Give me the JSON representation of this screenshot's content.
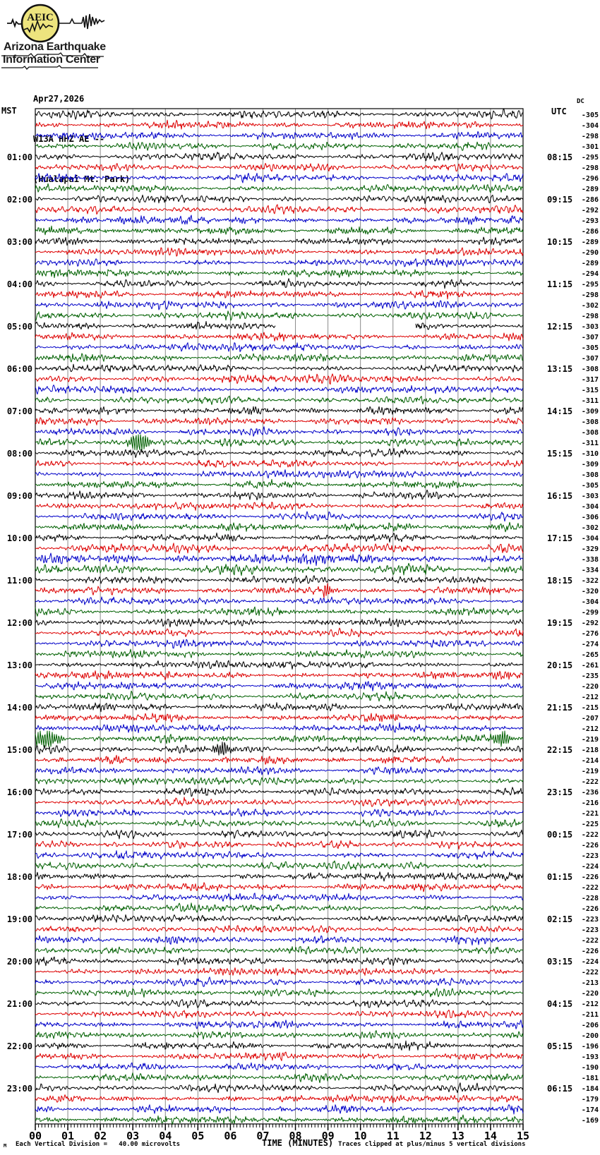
{
  "header": {
    "logo_text": "AEIC",
    "org_line1": "Arizona Earthquake",
    "org_line2": "Information Center",
    "date": "Apr27,2026",
    "station": "W13A HHZ AE --",
    "location": "(Hualapai Mt. Park)"
  },
  "axes": {
    "left_title": "MST",
    "right_title": "UTC",
    "offset_title": "DC"
  },
  "footer": {
    "mini_mark": "M",
    "scale_note": "Each Vertical Division =   40.00 microvolts",
    "axis_title": "TIME (MINUTES)",
    "clip_note": "Traces clipped at plus/minus 5 vertical divisions"
  },
  "chart_data": {
    "type": "seismogram-helicorder",
    "title": "W13A HHZ AE -- (Hualapai Mt. Park) Apr27,2026",
    "xlabel": "TIME (MINUTES)",
    "x_range_minutes": [
      0,
      15
    ],
    "x_tick_labels": [
      "00",
      "01",
      "02",
      "03",
      "04",
      "05",
      "06",
      "07",
      "08",
      "09",
      "10",
      "11",
      "12",
      "13",
      "14",
      "15"
    ],
    "minutes_per_line": 15,
    "lines_per_hour": 4,
    "microvolts_per_division": 40,
    "clip_divisions": 5,
    "grid": true,
    "grid_color": "#8a8a8a",
    "color_map": {
      "k": "#000000",
      "r": "#dd0000",
      "b": "#0000c8",
      "g": "#006000"
    },
    "rows": [
      {
        "c": "k",
        "dc": -305
      },
      {
        "c": "r",
        "dc": -304
      },
      {
        "c": "b",
        "dc": -298
      },
      {
        "c": "g",
        "dc": -301
      },
      {
        "c": "k",
        "dc": -295,
        "mst": "01:00",
        "utc": "08:15"
      },
      {
        "c": "r",
        "dc": -298
      },
      {
        "c": "b",
        "dc": -296
      },
      {
        "c": "g",
        "dc": -289
      },
      {
        "c": "k",
        "dc": -286,
        "mst": "02:00",
        "utc": "09:15"
      },
      {
        "c": "r",
        "dc": -292
      },
      {
        "c": "b",
        "dc": -293
      },
      {
        "c": "g",
        "dc": -286
      },
      {
        "c": "k",
        "dc": -289,
        "mst": "03:00",
        "utc": "10:15"
      },
      {
        "c": "r",
        "dc": -290
      },
      {
        "c": "b",
        "dc": -289
      },
      {
        "c": "g",
        "dc": -294
      },
      {
        "c": "k",
        "dc": -295,
        "mst": "04:00",
        "utc": "11:15"
      },
      {
        "c": "r",
        "dc": -298
      },
      {
        "c": "b",
        "dc": -302
      },
      {
        "c": "g",
        "dc": -298
      },
      {
        "c": "k",
        "dc": -303,
        "mst": "05:00",
        "utc": "12:15",
        "gap": [
          7.4,
          11.7
        ]
      },
      {
        "c": "r",
        "dc": -307
      },
      {
        "c": "b",
        "dc": -305
      },
      {
        "c": "g",
        "dc": -307
      },
      {
        "c": "k",
        "dc": -308,
        "mst": "06:00",
        "utc": "13:15"
      },
      {
        "c": "r",
        "dc": -317,
        "amp": 1.15
      },
      {
        "c": "b",
        "dc": -315
      },
      {
        "c": "g",
        "dc": -311
      },
      {
        "c": "k",
        "dc": -309,
        "mst": "07:00",
        "utc": "14:15"
      },
      {
        "c": "r",
        "dc": -308
      },
      {
        "c": "b",
        "dc": -308
      },
      {
        "c": "g",
        "dc": -311,
        "bursts": [
          {
            "m": 3.2,
            "a": 14,
            "w": 10
          }
        ]
      },
      {
        "c": "k",
        "dc": -310,
        "mst": "08:00",
        "utc": "15:15"
      },
      {
        "c": "r",
        "dc": -309
      },
      {
        "c": "b",
        "dc": -308
      },
      {
        "c": "g",
        "dc": -305
      },
      {
        "c": "k",
        "dc": -303,
        "mst": "09:00",
        "utc": "16:15"
      },
      {
        "c": "r",
        "dc": -304
      },
      {
        "c": "b",
        "dc": -306
      },
      {
        "c": "g",
        "dc": -302
      },
      {
        "c": "k",
        "dc": -304,
        "mst": "10:00",
        "utc": "17:15"
      },
      {
        "c": "r",
        "dc": -329,
        "amp": 1.3
      },
      {
        "c": "b",
        "dc": -338,
        "amp": 1.35
      },
      {
        "c": "g",
        "dc": -334,
        "amp": 1.3
      },
      {
        "c": "k",
        "dc": -322,
        "mst": "11:00",
        "utc": "18:15"
      },
      {
        "c": "r",
        "dc": -320,
        "bursts": [
          {
            "m": 8.95,
            "a": 9,
            "w": 5
          }
        ]
      },
      {
        "c": "b",
        "dc": -304
      },
      {
        "c": "g",
        "dc": -299
      },
      {
        "c": "k",
        "dc": -292,
        "mst": "12:00",
        "utc": "19:15"
      },
      {
        "c": "r",
        "dc": -276
      },
      {
        "c": "b",
        "dc": -274
      },
      {
        "c": "g",
        "dc": -265
      },
      {
        "c": "k",
        "dc": -261,
        "mst": "13:00",
        "utc": "20:15"
      },
      {
        "c": "r",
        "dc": -235
      },
      {
        "c": "b",
        "dc": -220
      },
      {
        "c": "g",
        "dc": -212
      },
      {
        "c": "k",
        "dc": -215,
        "mst": "14:00",
        "utc": "21:15"
      },
      {
        "c": "r",
        "dc": -207
      },
      {
        "c": "b",
        "dc": -212
      },
      {
        "c": "g",
        "dc": -219,
        "bursts": [
          {
            "m": 0.3,
            "a": 13,
            "w": 14
          },
          {
            "m": 14.35,
            "a": 11,
            "w": 8
          }
        ]
      },
      {
        "c": "k",
        "dc": -218,
        "mst": "15:00",
        "utc": "22:15",
        "bursts": [
          {
            "m": 5.75,
            "a": 10,
            "w": 8
          }
        ]
      },
      {
        "c": "r",
        "dc": -214
      },
      {
        "c": "b",
        "dc": -219
      },
      {
        "c": "g",
        "dc": -222
      },
      {
        "c": "k",
        "dc": -236,
        "mst": "16:00",
        "utc": "23:15"
      },
      {
        "c": "r",
        "dc": -216
      },
      {
        "c": "b",
        "dc": -221
      },
      {
        "c": "g",
        "dc": -225
      },
      {
        "c": "k",
        "dc": -222,
        "mst": "17:00",
        "utc": "00:15"
      },
      {
        "c": "r",
        "dc": -226
      },
      {
        "c": "b",
        "dc": -223
      },
      {
        "c": "g",
        "dc": -224
      },
      {
        "c": "k",
        "dc": -226,
        "mst": "18:00",
        "utc": "01:15"
      },
      {
        "c": "r",
        "dc": -222
      },
      {
        "c": "b",
        "dc": -228
      },
      {
        "c": "g",
        "dc": -226
      },
      {
        "c": "k",
        "dc": -223,
        "mst": "19:00",
        "utc": "02:15"
      },
      {
        "c": "r",
        "dc": -223
      },
      {
        "c": "b",
        "dc": -222
      },
      {
        "c": "g",
        "dc": -226
      },
      {
        "c": "k",
        "dc": -224,
        "mst": "20:00",
        "utc": "03:15"
      },
      {
        "c": "r",
        "dc": -222
      },
      {
        "c": "b",
        "dc": -213
      },
      {
        "c": "g",
        "dc": -220
      },
      {
        "c": "k",
        "dc": -212,
        "mst": "21:00",
        "utc": "04:15"
      },
      {
        "c": "r",
        "dc": -211
      },
      {
        "c": "b",
        "dc": -206
      },
      {
        "c": "g",
        "dc": -200
      },
      {
        "c": "k",
        "dc": -196,
        "mst": "22:00",
        "utc": "05:15"
      },
      {
        "c": "r",
        "dc": -193
      },
      {
        "c": "b",
        "dc": -190
      },
      {
        "c": "g",
        "dc": -181
      },
      {
        "c": "k",
        "dc": -184,
        "mst": "23:00",
        "utc": "06:15"
      },
      {
        "c": "r",
        "dc": -179
      },
      {
        "c": "b",
        "dc": -174
      },
      {
        "c": "g",
        "dc": -169
      }
    ]
  }
}
